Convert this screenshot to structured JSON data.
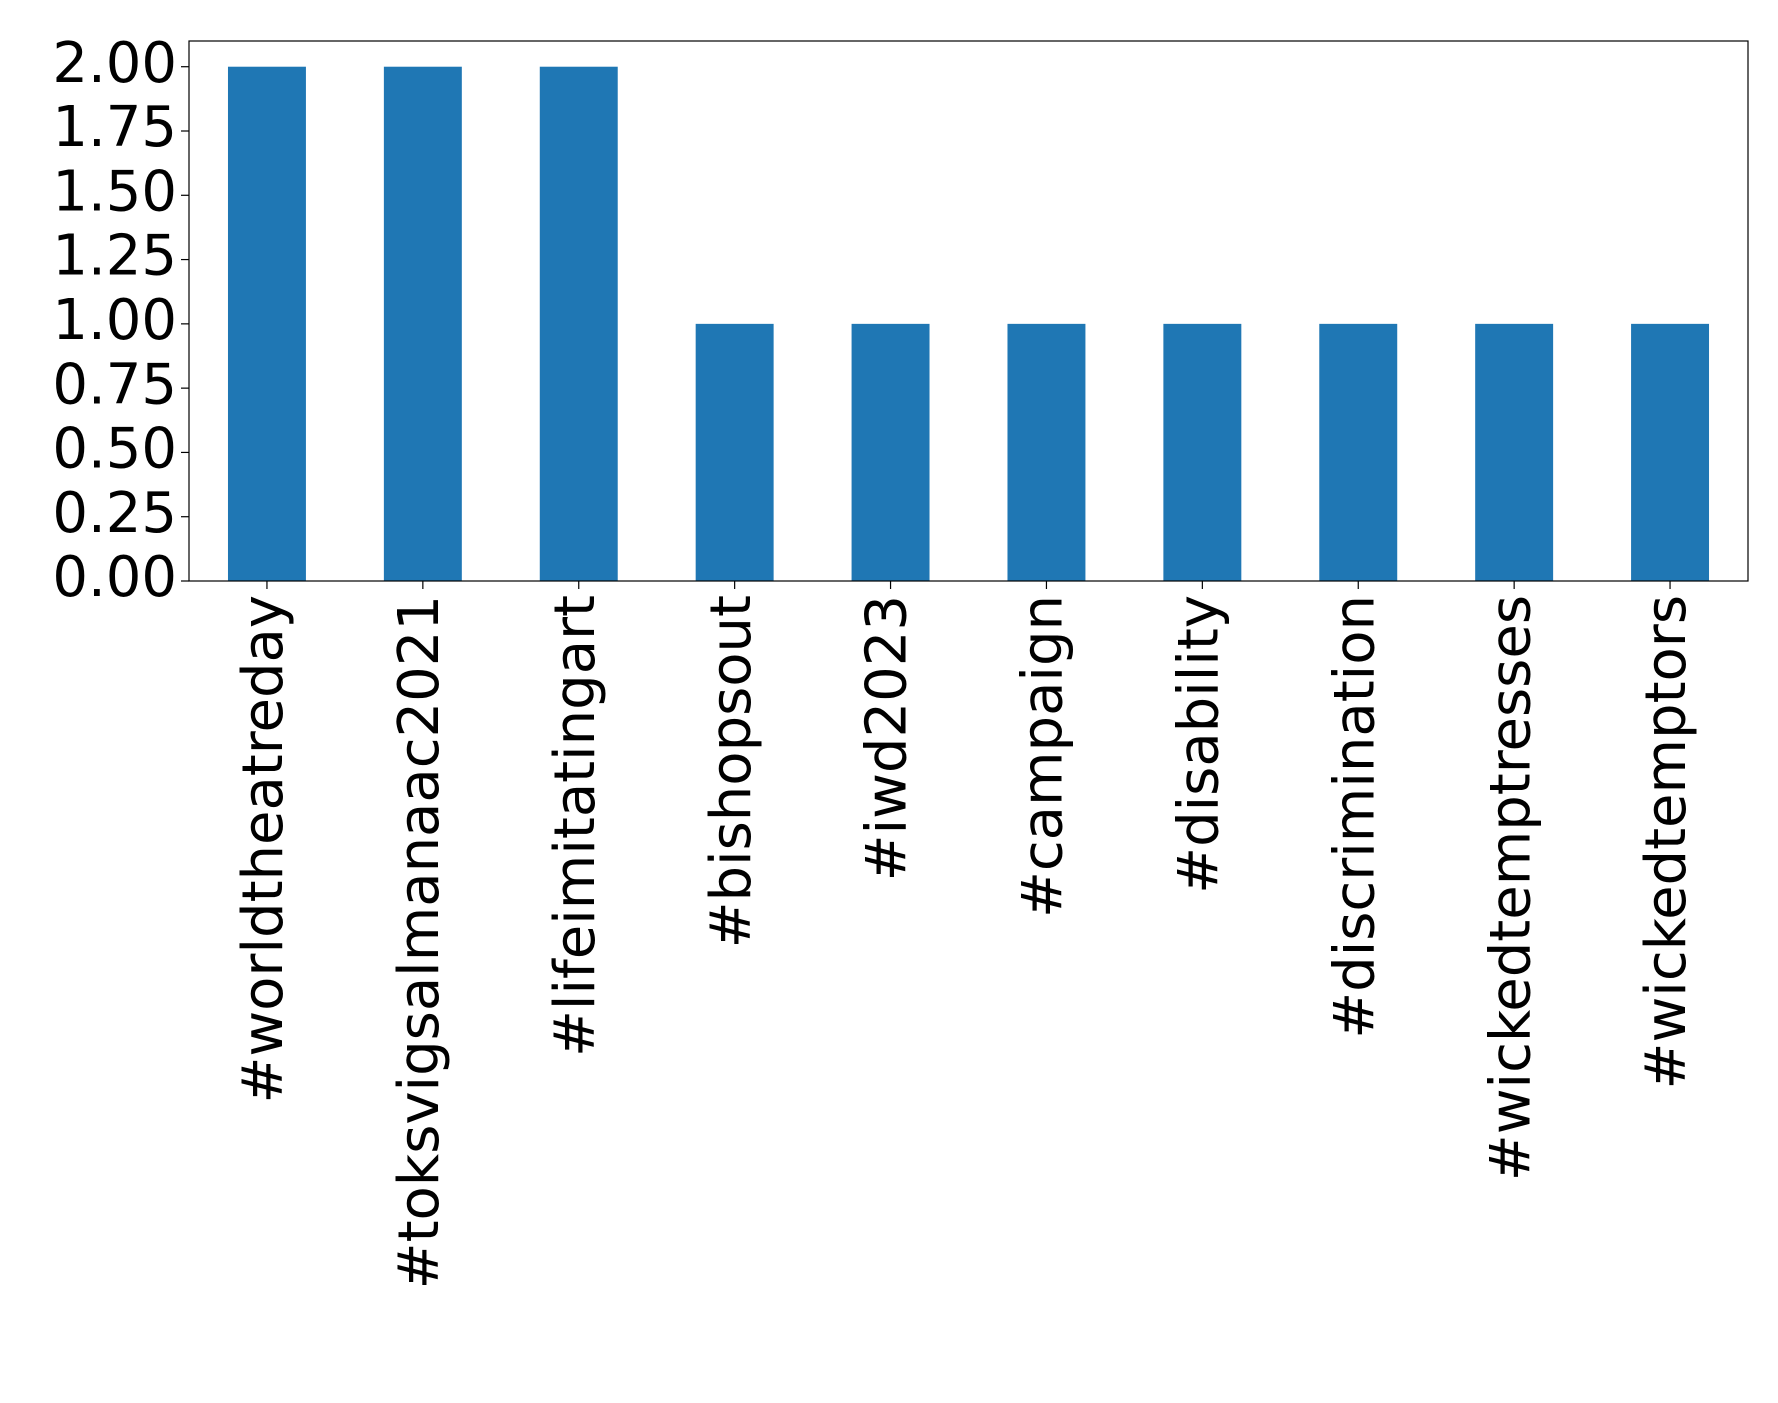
{
  "chart_data": {
    "type": "bar",
    "categories": [
      "#worldtheatreday",
      "#toksvigsalmanaac2021",
      "#lifeimitatingart",
      "#bishopsout",
      "#iwd2023",
      "#campaign",
      "#disability",
      "#discrimination",
      "#wickedtemptresses",
      "#wickedtemptors"
    ],
    "values": [
      2,
      2,
      2,
      1,
      1,
      1,
      1,
      1,
      1,
      1
    ],
    "color": "#1f77b4",
    "ylim": [
      0,
      2.1
    ],
    "yticks": [
      {
        "value": 0,
        "label": "0.00"
      },
      {
        "value": 0.25,
        "label": "0.25"
      },
      {
        "value": 0.5,
        "label": "0.50"
      },
      {
        "value": 0.75,
        "label": "0.75"
      },
      {
        "value": 1,
        "label": "1.00"
      },
      {
        "value": 1.25,
        "label": "1.25"
      },
      {
        "value": 1.5,
        "label": "1.50"
      },
      {
        "value": 1.75,
        "label": "1.75"
      },
      {
        "value": 2,
        "label": "2.00"
      }
    ],
    "grid": false
  }
}
